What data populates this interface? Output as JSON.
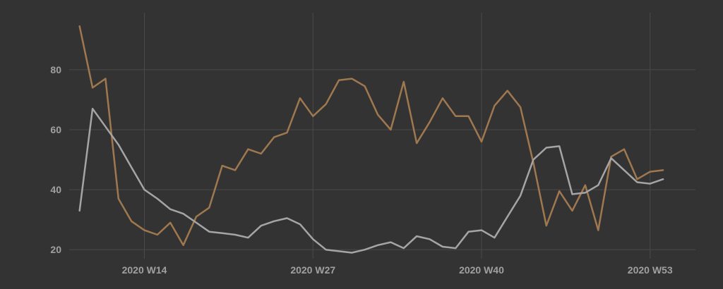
{
  "chart_data": {
    "type": "line",
    "title": "",
    "xlabel": "",
    "ylabel": "",
    "x_ticks": [
      {
        "week": 14,
        "label": "2020 W14"
      },
      {
        "week": 27,
        "label": "2020 W27"
      },
      {
        "week": 40,
        "label": "2020 W40"
      },
      {
        "week": 53,
        "label": "2020 W53"
      }
    ],
    "y_ticks": [
      20,
      40,
      60,
      80
    ],
    "xlim": [
      8.2,
      56.5
    ],
    "ylim": [
      17,
      99
    ],
    "grid": true,
    "legend": "none",
    "x": [
      9,
      10,
      11,
      12,
      13,
      14,
      15,
      16,
      17,
      18,
      19,
      20,
      21,
      22,
      23,
      24,
      25,
      26,
      27,
      28,
      29,
      30,
      31,
      32,
      33,
      34,
      35,
      36,
      37,
      38,
      39,
      40,
      41,
      42,
      43,
      44,
      45,
      46,
      47,
      48,
      49,
      50,
      51,
      52,
      53,
      54
    ],
    "series": [
      {
        "color": "#a0784f",
        "values": [
          94.5,
          74,
          77,
          37,
          29.5,
          26.5,
          25,
          29,
          21.5,
          31,
          34,
          48,
          46.5,
          53.5,
          52,
          57.5,
          59,
          70.5,
          64.5,
          68.5,
          76.5,
          77,
          74.5,
          65,
          60,
          76,
          55.5,
          62.5,
          70.5,
          64.5,
          64.5,
          56,
          68,
          73,
          67.5,
          49,
          28,
          39.5,
          33,
          41.5,
          26.5,
          51,
          53.5,
          43.5,
          46,
          46.5
        ]
      },
      {
        "color": "#a5a5a5",
        "values": [
          33,
          67,
          61,
          55,
          47.5,
          40,
          37,
          33.5,
          32,
          29,
          26,
          25.5,
          25,
          24,
          28,
          29.5,
          30.5,
          28.5,
          23.5,
          20,
          19.5,
          19,
          20,
          21.5,
          22.5,
          20.5,
          24.5,
          23.5,
          21,
          20.5,
          26,
          26.5,
          24,
          31,
          38,
          50,
          54,
          54.5,
          38.5,
          39,
          41.5,
          50.5,
          46.5,
          42.5,
          42,
          43.5
        ]
      }
    ]
  }
}
